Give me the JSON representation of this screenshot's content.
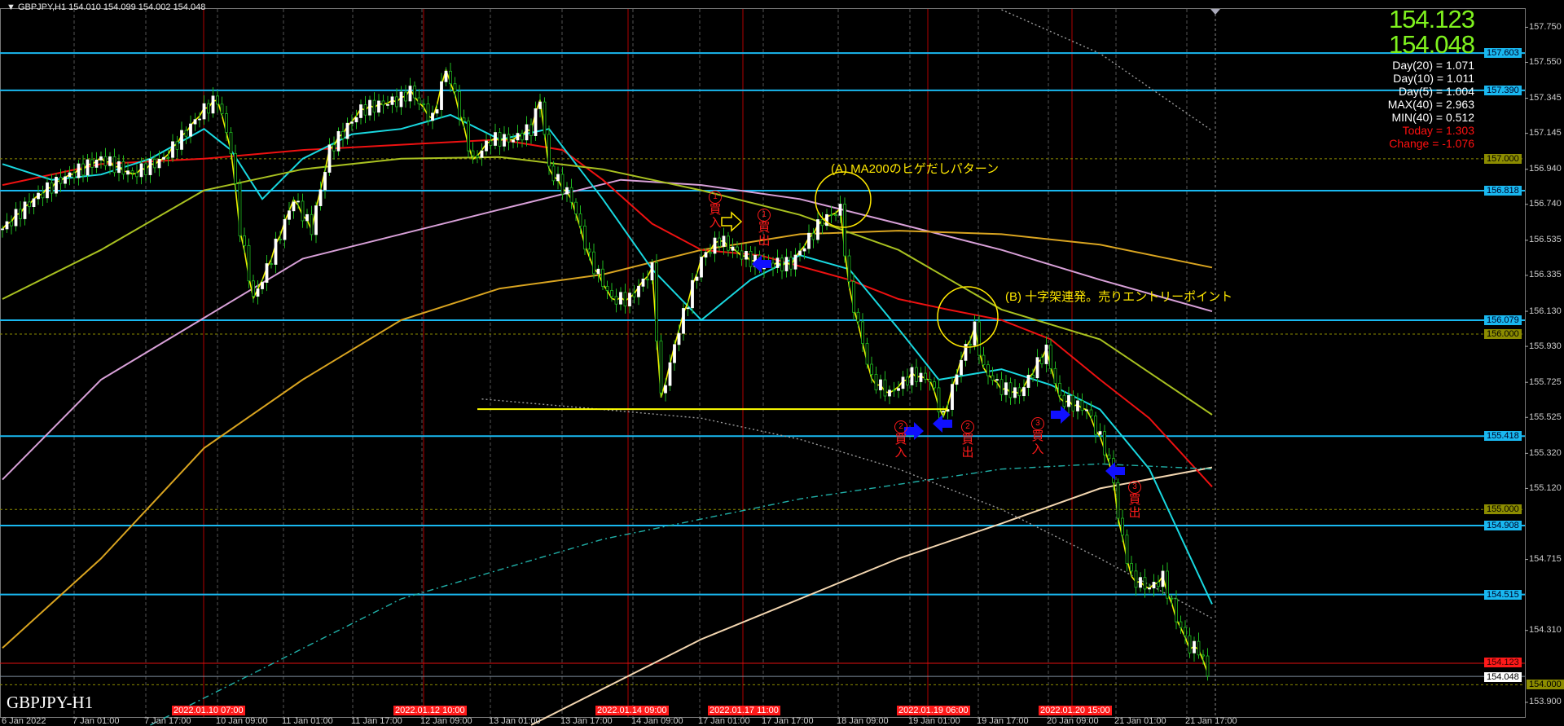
{
  "header": {
    "symbol_line": "GBPJPY,H1  154.010 154.099 154.002 154.048",
    "watermark": "GBPJPY-H1"
  },
  "info_panel": {
    "bid": "154.123",
    "ask": "154.048",
    "day20": "Day(20) = 1.071",
    "day10": "Day(10) = 1.011",
    "day5": "Day(5) = 1.004",
    "max40": "MAX(40) = 2.963",
    "min40": "MIN(40) = 0.512",
    "today": "Today = 1.303",
    "change": "Change = -1.076"
  },
  "colors": {
    "background": "#000000",
    "bull_body": "#ffffff",
    "wick": "#1fb81f",
    "hline": "#19b8f0",
    "round_line": "#8c8c00",
    "bid_line": "#e01010",
    "ma200": "#d8a0d8",
    "ma_gold": "#d9a420",
    "ma_red": "#ee1111",
    "ma_cyan": "#19d8e0",
    "ma_olive": "#a8c020",
    "ma_fast": "#f0f000",
    "ma_cream": "#f3d6b0",
    "ma_teal": "#20b0a8",
    "band": "#9a9a9a",
    "signal": "#ff1a1a",
    "arrow": "#1010ff",
    "annotation": "#ffe800"
  },
  "chart_data": {
    "type": "candlestick",
    "symbol": "GBPJPY",
    "timeframe": "H1",
    "ylim": [
      153.81,
      157.85
    ],
    "y_ticks": [
      "157.750",
      "157.550",
      "157.345",
      "157.145",
      "156.940",
      "156.740",
      "156.535",
      "156.335",
      "156.130",
      "155.930",
      "155.725",
      "155.525",
      "155.320",
      "155.120",
      "154.715",
      "154.310",
      "153.900"
    ],
    "x_ticks": [
      "6 Jan 2022",
      "7 Jan 01:00",
      "7 Jan 17:00",
      "10 Jan 09:00",
      "11 Jan 01:00",
      "11 Jan 17:00",
      "12 Jan 09:00",
      "13 Jan 01:00",
      "13 Jan 17:00",
      "14 Jan 09:00",
      "17 Jan 01:00",
      "17 Jan 17:00",
      "18 Jan 09:00",
      "19 Jan 01:00",
      "19 Jan 17:00",
      "20 Jan 09:00",
      "21 Jan 01:00",
      "21 Jan 17:00"
    ],
    "x_markers": [
      "2022.01.10 07:00",
      "2022.01.12 10:00",
      "2022.01.14 09:00",
      "2022.01.17 11:00",
      "2022.01.19 06:00",
      "2022.01.20 15:00"
    ],
    "price_path_h1_bar": [
      [
        0,
        156.6
      ],
      [
        7,
        156.77
      ],
      [
        13,
        156.88
      ],
      [
        22,
        157.0
      ],
      [
        29,
        156.91
      ],
      [
        36,
        157.0
      ],
      [
        45,
        157.28
      ],
      [
        48,
        157.34
      ],
      [
        51,
        157.05
      ],
      [
        53,
        156.6
      ],
      [
        56,
        156.2
      ],
      [
        59,
        156.37
      ],
      [
        65,
        156.77
      ],
      [
        69,
        156.6
      ],
      [
        73,
        157.05
      ],
      [
        80,
        157.28
      ],
      [
        89,
        157.34
      ],
      [
        91,
        157.39
      ],
      [
        96,
        157.22
      ],
      [
        99,
        157.51
      ],
      [
        101,
        157.36
      ],
      [
        105,
        156.99
      ],
      [
        109,
        157.11
      ],
      [
        114,
        157.11
      ],
      [
        118,
        157.17
      ],
      [
        120,
        157.34
      ],
      [
        122,
        156.94
      ],
      [
        127,
        156.77
      ],
      [
        131,
        156.43
      ],
      [
        136,
        156.2
      ],
      [
        140,
        156.2
      ],
      [
        145,
        156.37
      ],
      [
        147,
        155.63
      ],
      [
        151,
        156.03
      ],
      [
        156,
        156.43
      ],
      [
        160,
        156.54
      ],
      [
        165,
        156.45
      ],
      [
        169,
        156.4
      ],
      [
        176,
        156.4
      ],
      [
        183,
        156.65
      ],
      [
        187,
        156.71
      ],
      [
        189,
        156.26
      ],
      [
        194,
        155.74
      ],
      [
        198,
        155.66
      ],
      [
        203,
        155.77
      ],
      [
        207,
        155.74
      ],
      [
        210,
        155.52
      ],
      [
        214,
        155.86
      ],
      [
        217,
        156.03
      ],
      [
        219,
        155.8
      ],
      [
        223,
        155.69
      ],
      [
        227,
        155.66
      ],
      [
        233,
        155.91
      ],
      [
        236,
        155.63
      ],
      [
        242,
        155.57
      ],
      [
        246,
        155.35
      ],
      [
        248,
        155.17
      ],
      [
        249,
        154.95
      ],
      [
        252,
        154.61
      ],
      [
        256,
        154.55
      ],
      [
        259,
        154.61
      ],
      [
        262,
        154.38
      ],
      [
        265,
        154.21
      ],
      [
        267,
        154.21
      ],
      [
        269,
        154.05
      ]
    ],
    "indicators": [
      {
        "key": "ma200",
        "style": "solid",
        "points": [
          [
            0,
            155.17
          ],
          [
            22,
            155.74
          ],
          [
            67,
            156.43
          ],
          [
            111,
            156.71
          ],
          [
            138,
            156.88
          ],
          [
            156,
            156.85
          ],
          [
            178,
            156.77
          ],
          [
            200,
            156.63
          ],
          [
            223,
            156.48
          ],
          [
            245,
            156.31
          ],
          [
            270,
            156.13
          ]
        ]
      },
      {
        "key": "ma_gold",
        "style": "solid",
        "points": [
          [
            0,
            154.21
          ],
          [
            22,
            154.72
          ],
          [
            45,
            155.35
          ],
          [
            67,
            155.74
          ],
          [
            89,
            156.08
          ],
          [
            111,
            156.26
          ],
          [
            134,
            156.34
          ],
          [
            156,
            156.48
          ],
          [
            178,
            156.57
          ],
          [
            200,
            156.59
          ],
          [
            223,
            156.57
          ],
          [
            245,
            156.51
          ],
          [
            270,
            156.38
          ]
        ]
      },
      {
        "key": "ma_cream",
        "style": "solid",
        "points": [
          [
            118,
            153.77
          ],
          [
            156,
            154.26
          ],
          [
            200,
            154.72
          ],
          [
            223,
            154.92
          ],
          [
            245,
            155.12
          ],
          [
            270,
            155.24
          ]
        ]
      },
      {
        "key": "ma_red",
        "style": "solid",
        "points": [
          [
            0,
            156.85
          ],
          [
            22,
            156.97
          ],
          [
            45,
            157.0
          ],
          [
            67,
            157.05
          ],
          [
            89,
            157.08
          ],
          [
            111,
            157.11
          ],
          [
            125,
            157.05
          ],
          [
            134,
            156.88
          ],
          [
            145,
            156.63
          ],
          [
            156,
            156.48
          ],
          [
            169,
            156.45
          ],
          [
            189,
            156.31
          ],
          [
            200,
            156.2
          ],
          [
            211,
            156.14
          ],
          [
            223,
            156.08
          ],
          [
            234,
            155.97
          ],
          [
            245,
            155.74
          ],
          [
            256,
            155.52
          ],
          [
            270,
            155.13
          ]
        ]
      },
      {
        "key": "ma_cyan",
        "style": "solid",
        "points": [
          [
            0,
            156.97
          ],
          [
            11,
            156.88
          ],
          [
            22,
            156.91
          ],
          [
            33,
            157.0
          ],
          [
            45,
            157.17
          ],
          [
            51,
            157.05
          ],
          [
            58,
            156.77
          ],
          [
            67,
            157.0
          ],
          [
            78,
            157.14
          ],
          [
            89,
            157.17
          ],
          [
            100,
            157.25
          ],
          [
            111,
            157.11
          ],
          [
            122,
            157.17
          ],
          [
            134,
            156.77
          ],
          [
            145,
            156.37
          ],
          [
            156,
            156.08
          ],
          [
            167,
            156.31
          ],
          [
            178,
            156.45
          ],
          [
            189,
            156.37
          ],
          [
            200,
            156.03
          ],
          [
            209,
            155.74
          ],
          [
            223,
            155.8
          ],
          [
            234,
            155.71
          ],
          [
            245,
            155.57
          ],
          [
            256,
            155.23
          ],
          [
            270,
            154.46
          ]
        ]
      },
      {
        "key": "ma_olive",
        "style": "solid",
        "points": [
          [
            0,
            156.2
          ],
          [
            22,
            156.48
          ],
          [
            45,
            156.82
          ],
          [
            67,
            156.94
          ],
          [
            89,
            157.0
          ],
          [
            111,
            157.01
          ],
          [
            134,
            156.94
          ],
          [
            156,
            156.82
          ],
          [
            178,
            156.68
          ],
          [
            200,
            156.48
          ],
          [
            223,
            156.14
          ],
          [
            245,
            155.97
          ],
          [
            270,
            155.54
          ]
        ]
      },
      {
        "key": "ma_teal",
        "style": "dashed",
        "points": [
          [
            33,
            153.77
          ],
          [
            89,
            154.49
          ],
          [
            134,
            154.83
          ],
          [
            178,
            155.06
          ],
          [
            223,
            155.23
          ],
          [
            245,
            155.26
          ],
          [
            270,
            155.23
          ]
        ]
      },
      {
        "key": "band",
        "style": "dotted",
        "points": [
          [
            107,
            155.63
          ],
          [
            134,
            155.57
          ],
          [
            156,
            155.52
          ],
          [
            178,
            155.4
          ],
          [
            200,
            155.23
          ],
          [
            223,
            155.0
          ],
          [
            245,
            154.72
          ],
          [
            270,
            154.38
          ]
        ]
      },
      {
        "key": "band",
        "style": "dotted",
        "points": [
          [
            223,
            157.85
          ],
          [
            245,
            157.6
          ],
          [
            270,
            157.16
          ]
        ]
      }
    ],
    "horizontal_levels": [
      "157.603",
      "157.390",
      "156.818",
      "156.079",
      "155.418",
      "154.908",
      "154.515"
    ],
    "round_levels": [
      "157.000",
      "156.000",
      "155.000",
      "154.000"
    ],
    "bid_level": "154.123",
    "last_level": "154.048",
    "support_line": {
      "price": 155.572,
      "from_bar": 106,
      "to_bar": 211
    },
    "annotations": {
      "a": "(A)  MA200のヒゲだしパターン",
      "b": "(B)  十字架連発。売りエントリーポイント",
      "sig1_buy": {
        "num": "1",
        "t1": "買",
        "t2": "入"
      },
      "sig1_exit": {
        "num": "1",
        "t1": "買",
        "t2": "出"
      },
      "sig2_buy": {
        "num": "2",
        "t1": "買",
        "t2": "入"
      },
      "sig2_exit": {
        "num": "2",
        "t1": "買",
        "t2": "出"
      },
      "sig3_buy": {
        "num": "3",
        "t1": "買",
        "t2": "入"
      },
      "sig3_exit": {
        "num": "3",
        "t1": "買",
        "t2": "出"
      }
    }
  }
}
